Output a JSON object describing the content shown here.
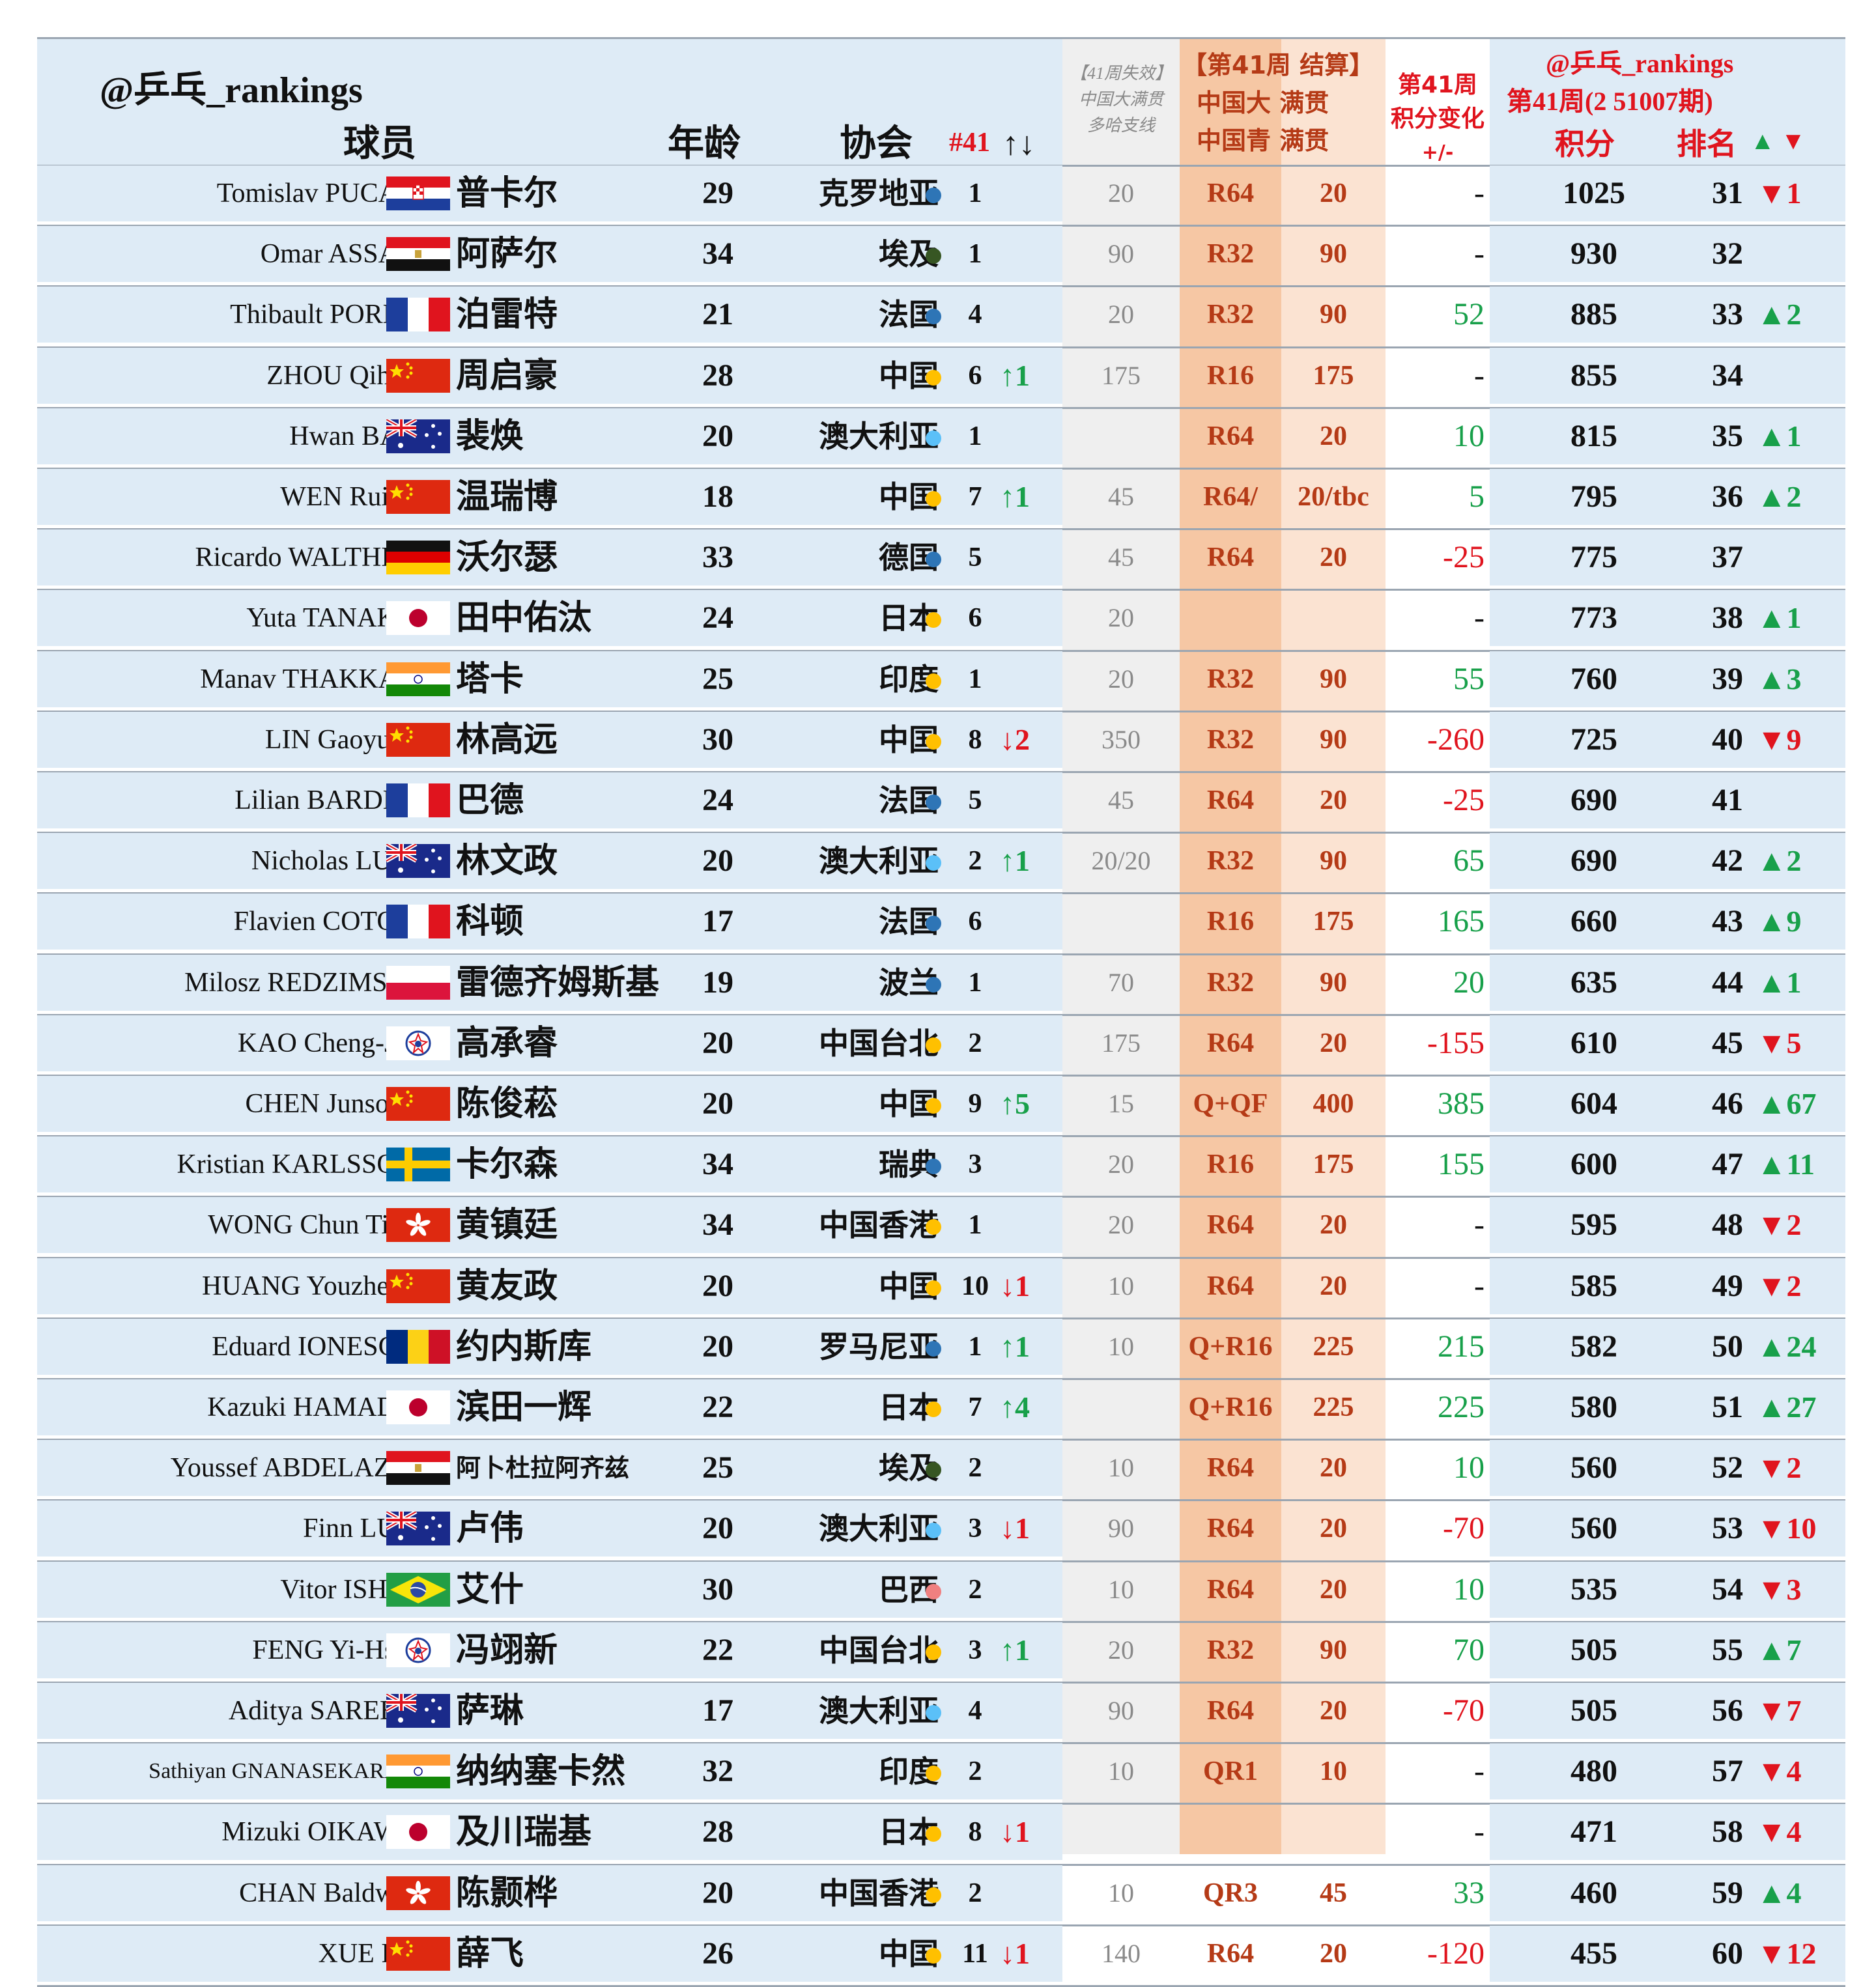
{
  "header": {
    "watermark": "@乒乓_rankings",
    "player_col": "球员",
    "age_col": "年龄",
    "assoc_col": "协会",
    "rank41_col": "#41",
    "rank41_arrows": "↑↓",
    "lost_col": [
      "【41周失效】",
      "中国大满贯",
      "多哈支线"
    ],
    "settle_col": [
      "【第41周 结算】",
      "中国大 满贯",
      "中国青 满贯"
    ],
    "change_col": [
      "第41周",
      "积分变化",
      "+/-"
    ],
    "top_col": [
      "@乒乓_rankings",
      "第41周(2 51007期)"
    ],
    "points_col": "积分",
    "rank_col": "排名",
    "rank_arrows": "▲ ▼"
  },
  "colors": {
    "up": "#18a04a",
    "down": "#e0141e",
    "band": "#deebf6",
    "round_col": "#f6c7a4",
    "points_col": "#fbe3d2"
  },
  "rows": [
    {
      "name": "Tomislav PUCAR",
      "flag": "croatia",
      "cn": "普卡尔",
      "age": "29",
      "assoc": "克罗地亚",
      "dot": "#2e75b6",
      "n41": "1",
      "mv": "",
      "lost": "20",
      "round": "R64",
      "pts": "20",
      "chg": "-",
      "chg_type": "neutral",
      "score": "1025",
      "rank": "31",
      "rmv": "▼1",
      "rmv_type": "down"
    },
    {
      "name": "Omar ASSAR",
      "flag": "egypt",
      "cn": "阿萨尔",
      "age": "34",
      "assoc": "埃及",
      "dot": "#375623",
      "n41": "1",
      "mv": "",
      "lost": "90",
      "round": "R32",
      "pts": "90",
      "chg": "-",
      "chg_type": "neutral",
      "score": "930",
      "rank": "32",
      "rmv": "",
      "rmv_type": "neutral"
    },
    {
      "name": "Thibault PORET",
      "flag": "france",
      "cn": "泊雷特",
      "age": "21",
      "assoc": "法国",
      "dot": "#2e75b6",
      "n41": "4",
      "mv": "",
      "lost": "20",
      "round": "R32",
      "pts": "90",
      "chg": "52",
      "chg_type": "up",
      "score": "885",
      "rank": "33",
      "rmv": "▲2",
      "rmv_type": "up"
    },
    {
      "name": "ZHOU Qihao",
      "flag": "china",
      "cn": "周启豪",
      "age": "28",
      "assoc": "中国",
      "dot": "#ffc000",
      "n41": "6",
      "mv": "↑1",
      "lost": "175",
      "round": "R16",
      "pts": "175",
      "chg": "-",
      "chg_type": "neutral",
      "score": "855",
      "rank": "34",
      "rmv": "",
      "rmv_type": "neutral"
    },
    {
      "name": "Hwan BAE",
      "flag": "australia",
      "cn": "裴焕",
      "age": "20",
      "assoc": "澳大利亚",
      "dot": "#5bc0f8",
      "n41": "1",
      "mv": "",
      "lost": "",
      "round": "R64",
      "pts": "20",
      "chg": "10",
      "chg_type": "up",
      "score": "815",
      "rank": "35",
      "rmv": "▲1",
      "rmv_type": "up"
    },
    {
      "name": "WEN Ruibo",
      "flag": "china",
      "cn": "温瑞博",
      "age": "18",
      "assoc": "中国",
      "dot": "#ffc000",
      "n41": "7",
      "mv": "↑1",
      "lost": "45",
      "round": "R64/",
      "pts": "20/tbc",
      "chg": "5",
      "chg_type": "up",
      "score": "795",
      "rank": "36",
      "rmv": "▲2",
      "rmv_type": "up"
    },
    {
      "name": "Ricardo WALTHER",
      "flag": "germany",
      "cn": "沃尔瑟",
      "age": "33",
      "assoc": "德国",
      "dot": "#2e75b6",
      "n41": "5",
      "mv": "",
      "lost": "45",
      "round": "R64",
      "pts": "20",
      "chg": "-25",
      "chg_type": "down",
      "score": "775",
      "rank": "37",
      "rmv": "",
      "rmv_type": "neutral"
    },
    {
      "name": "Yuta TANAKA",
      "flag": "japan",
      "cn": "田中佑汰",
      "age": "24",
      "assoc": "日本",
      "dot": "#ffc000",
      "n41": "6",
      "mv": "",
      "lost": "20",
      "round": "",
      "pts": "",
      "chg": "-",
      "chg_type": "neutral",
      "score": "773",
      "rank": "38",
      "rmv": "▲1",
      "rmv_type": "up"
    },
    {
      "name": "Manav THAKKAR",
      "flag": "india",
      "cn": "塔卡",
      "age": "25",
      "assoc": "印度",
      "dot": "#ffc000",
      "n41": "1",
      "mv": "",
      "lost": "20",
      "round": "R32",
      "pts": "90",
      "chg": "55",
      "chg_type": "up",
      "score": "760",
      "rank": "39",
      "rmv": "▲3",
      "rmv_type": "up"
    },
    {
      "name": "LIN Gaoyuan",
      "flag": "china",
      "cn": "林高远",
      "age": "30",
      "assoc": "中国",
      "dot": "#ffc000",
      "n41": "8",
      "mv": "↓2",
      "lost": "350",
      "round": "R32",
      "pts": "90",
      "chg": "-260",
      "chg_type": "down",
      "score": "725",
      "rank": "40",
      "rmv": "▼9",
      "rmv_type": "down"
    },
    {
      "name": "Lilian BARDET",
      "flag": "france",
      "cn": "巴德",
      "age": "24",
      "assoc": "法国",
      "dot": "#2e75b6",
      "n41": "5",
      "mv": "",
      "lost": "45",
      "round": "R64",
      "pts": "20",
      "chg": "-25",
      "chg_type": "down",
      "score": "690",
      "rank": "41",
      "rmv": "",
      "rmv_type": "neutral"
    },
    {
      "name": "Nicholas LUM",
      "flag": "australia",
      "cn": "林文政",
      "age": "20",
      "assoc": "澳大利亚",
      "dot": "#5bc0f8",
      "n41": "2",
      "mv": "↑1",
      "lost": "20/20",
      "round": "R32",
      "pts": "90",
      "chg": "65",
      "chg_type": "up",
      "score": "690",
      "rank": "42",
      "rmv": "▲2",
      "rmv_type": "up"
    },
    {
      "name": "Flavien COTON",
      "flag": "france",
      "cn": "科顿",
      "age": "17",
      "assoc": "法国",
      "dot": "#2e75b6",
      "n41": "6",
      "mv": "",
      "lost": "",
      "round": "R16",
      "pts": "175",
      "chg": "165",
      "chg_type": "up",
      "score": "660",
      "rank": "43",
      "rmv": "▲9",
      "rmv_type": "up"
    },
    {
      "name": "Milosz REDZIMSKI",
      "flag": "poland",
      "cn": "雷德齐姆斯基",
      "age": "19",
      "assoc": "波兰",
      "dot": "#2e75b6",
      "n41": "1",
      "mv": "",
      "lost": "70",
      "round": "R32",
      "pts": "90",
      "chg": "20",
      "chg_type": "up",
      "score": "635",
      "rank": "44",
      "rmv": "▲1",
      "rmv_type": "up"
    },
    {
      "name": "KAO Cheng-Jui",
      "flag": "tpe",
      "cn": "高承睿",
      "age": "20",
      "assoc": "中国台北",
      "dot": "#ffc000",
      "n41": "2",
      "mv": "",
      "lost": "175",
      "round": "R64",
      "pts": "20",
      "chg": "-155",
      "chg_type": "down",
      "score": "610",
      "rank": "45",
      "rmv": "▼5",
      "rmv_type": "down"
    },
    {
      "name": "CHEN Junsong",
      "flag": "china",
      "cn": "陈俊菘",
      "age": "20",
      "assoc": "中国",
      "dot": "#ffc000",
      "n41": "9",
      "mv": "↑5",
      "lost": "15",
      "round": "Q+QF",
      "pts": "400",
      "chg": "385",
      "chg_type": "up",
      "score": "604",
      "rank": "46",
      "rmv": "▲67",
      "rmv_type": "up"
    },
    {
      "name": "Kristian KARLSSON",
      "flag": "sweden",
      "cn": "卡尔森",
      "age": "34",
      "assoc": "瑞典",
      "dot": "#2e75b6",
      "n41": "3",
      "mv": "",
      "lost": "20",
      "round": "R16",
      "pts": "175",
      "chg": "155",
      "chg_type": "up",
      "score": "600",
      "rank": "47",
      "rmv": "▲11",
      "rmv_type": "up"
    },
    {
      "name": "WONG Chun Ting",
      "flag": "hongkong",
      "cn": "黄镇廷",
      "age": "34",
      "assoc": "中国香港",
      "dot": "#ffc000",
      "n41": "1",
      "mv": "",
      "lost": "20",
      "round": "R64",
      "pts": "20",
      "chg": "-",
      "chg_type": "neutral",
      "score": "595",
      "rank": "48",
      "rmv": "▼2",
      "rmv_type": "down"
    },
    {
      "name": "HUANG Youzheng",
      "flag": "china",
      "cn": "黄友政",
      "age": "20",
      "assoc": "中国",
      "dot": "#ffc000",
      "n41": "10",
      "mv": "↓1",
      "lost": "10",
      "round": "R64",
      "pts": "20",
      "chg": "-",
      "chg_type": "neutral",
      "score": "585",
      "rank": "49",
      "rmv": "▼2",
      "rmv_type": "down"
    },
    {
      "name": "Eduard IONESCU",
      "flag": "romania",
      "cn": "约内斯库",
      "age": "20",
      "assoc": "罗马尼亚",
      "dot": "#2e75b6",
      "n41": "1",
      "mv": "↑1",
      "lost": "10",
      "round": "Q+R16",
      "pts": "225",
      "chg": "215",
      "chg_type": "up",
      "score": "582",
      "rank": "50",
      "rmv": "▲24",
      "rmv_type": "up"
    },
    {
      "name": "Kazuki HAMADA",
      "flag": "japan",
      "cn": "滨田一辉",
      "age": "22",
      "assoc": "日本",
      "dot": "#ffc000",
      "n41": "7",
      "mv": "↑4",
      "lost": "",
      "round": "Q+R16",
      "pts": "225",
      "chg": "225",
      "chg_type": "up",
      "score": "580",
      "rank": "51",
      "rmv": "▲27",
      "rmv_type": "up"
    },
    {
      "name": "Youssef ABDELAZIZ",
      "flag": "egypt",
      "cn": "阿卜杜拉阿齐兹",
      "age": "25",
      "assoc": "埃及",
      "dot": "#375623",
      "n41": "2",
      "mv": "",
      "lost": "10",
      "round": "R64",
      "pts": "20",
      "chg": "10",
      "chg_type": "up",
      "score": "560",
      "rank": "52",
      "rmv": "▼2",
      "rmv_type": "down"
    },
    {
      "name": "Finn LUU",
      "flag": "australia",
      "cn": "卢伟",
      "age": "20",
      "assoc": "澳大利亚",
      "dot": "#5bc0f8",
      "n41": "3",
      "mv": "↓1",
      "lost": "90",
      "round": "R64",
      "pts": "20",
      "chg": "-70",
      "chg_type": "down",
      "score": "560",
      "rank": "53",
      "rmv": "▼10",
      "rmv_type": "down"
    },
    {
      "name": "Vitor ISHIY",
      "flag": "brazil",
      "cn": "艾什",
      "age": "30",
      "assoc": "巴西",
      "dot": "#f08080",
      "n41": "2",
      "mv": "",
      "lost": "10",
      "round": "R64",
      "pts": "20",
      "chg": "10",
      "chg_type": "up",
      "score": "535",
      "rank": "54",
      "rmv": "▼3",
      "rmv_type": "down"
    },
    {
      "name": "FENG Yi-Hsin",
      "flag": "tpe",
      "cn": "冯翊新",
      "age": "22",
      "assoc": "中国台北",
      "dot": "#ffc000",
      "n41": "3",
      "mv": "↑1",
      "lost": "20",
      "round": "R32",
      "pts": "90",
      "chg": "70",
      "chg_type": "up",
      "score": "505",
      "rank": "55",
      "rmv": "▲7",
      "rmv_type": "up"
    },
    {
      "name": "Aditya SAREEN",
      "flag": "australia",
      "cn": "萨琳",
      "age": "17",
      "assoc": "澳大利亚",
      "dot": "#5bc0f8",
      "n41": "4",
      "mv": "",
      "lost": "90",
      "round": "R64",
      "pts": "20",
      "chg": "-70",
      "chg_type": "down",
      "score": "505",
      "rank": "56",
      "rmv": "▼7",
      "rmv_type": "down"
    },
    {
      "name": "Sathiyan GNANASEKARAN",
      "flag": "india",
      "cn": "纳纳塞卡然",
      "age": "32",
      "assoc": "印度",
      "dot": "#ffc000",
      "n41": "2",
      "mv": "",
      "lost": "10",
      "round": "QR1",
      "pts": "10",
      "chg": "-",
      "chg_type": "neutral",
      "score": "480",
      "rank": "57",
      "rmv": "▼4",
      "rmv_type": "down"
    },
    {
      "name": "Mizuki OIKAWA",
      "flag": "japan",
      "cn": "及川瑞基",
      "age": "28",
      "assoc": "日本",
      "dot": "#ffc000",
      "n41": "8",
      "mv": "↓1",
      "lost": "",
      "round": "",
      "pts": "",
      "chg": "-",
      "chg_type": "neutral",
      "score": "471",
      "rank": "58",
      "rmv": "▼4",
      "rmv_type": "down"
    },
    {
      "name": "CHAN Baldwin",
      "flag": "hongkong",
      "cn": "陈颢桦",
      "age": "20",
      "assoc": "中国香港",
      "dot": "#ffc000",
      "n41": "2",
      "mv": "",
      "lost": "10",
      "round": "QR3",
      "pts": "45",
      "chg": "33",
      "chg_type": "up",
      "score": "460",
      "rank": "59",
      "rmv": "▲4",
      "rmv_type": "up"
    },
    {
      "name": "XUE Fei",
      "flag": "china",
      "cn": "薛飞",
      "age": "26",
      "assoc": "中国",
      "dot": "#ffc000",
      "n41": "11",
      "mv": "↓1",
      "lost": "140",
      "round": "R64",
      "pts": "20",
      "chg": "-120",
      "chg_type": "down",
      "score": "455",
      "rank": "60",
      "rmv": "▼12",
      "rmv_type": "down"
    }
  ]
}
